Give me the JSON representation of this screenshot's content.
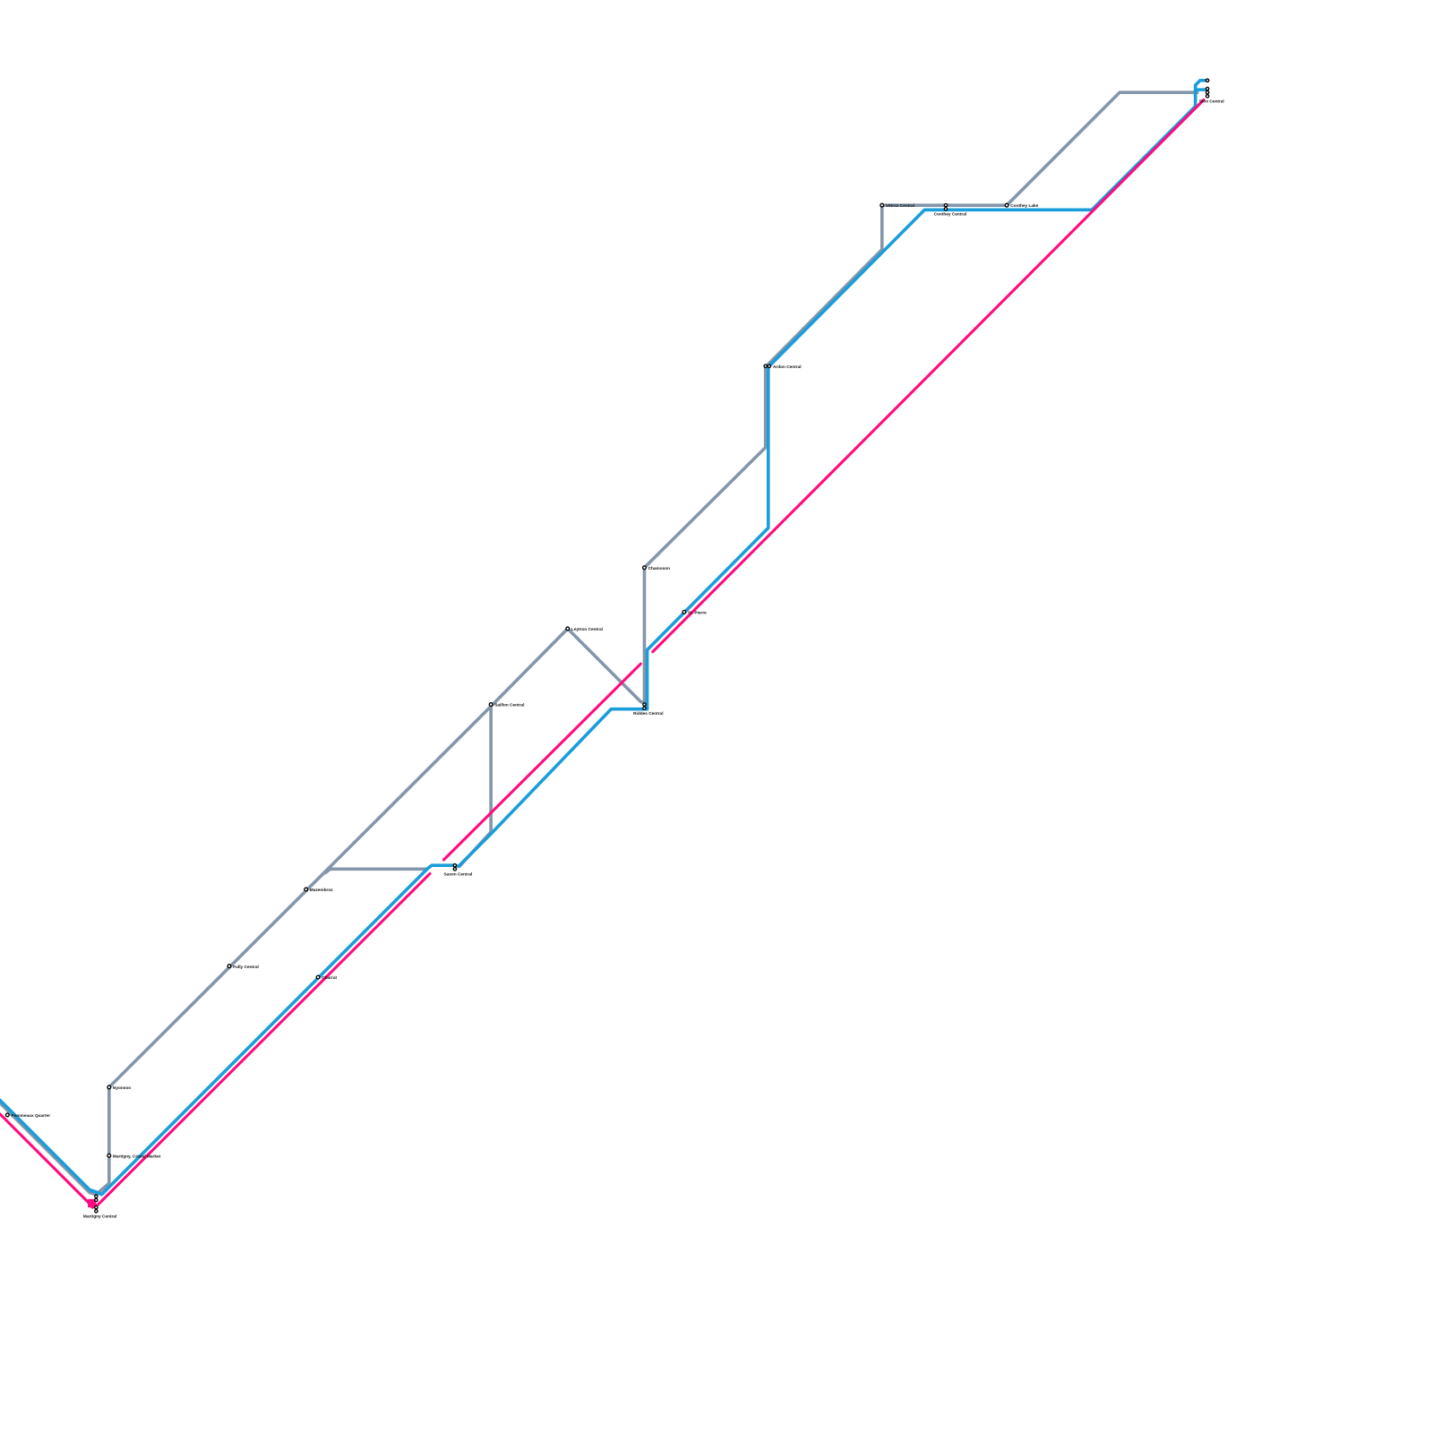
{
  "lines": [
    {
      "id": "gray",
      "color": "#8496a9"
    },
    {
      "id": "blue",
      "color": "#1a9ddb"
    },
    {
      "id": "pink",
      "color": "#ff0a7f"
    }
  ],
  "stations": {
    "pommeaux_quarter": "Pommeaux Quarter",
    "nyonsoo": "Nyonsoo",
    "martigny_market": "Martigny, Cristal Market",
    "martigny_central": "Martigny Central",
    "fully_central": "Fully Central",
    "mazembroz": "Mazembroz",
    "charrat": "Charrat",
    "saxon_central": "Saxon Central",
    "saillon_central": "Saillon Central",
    "leytron_central": "Leytron Central",
    "riddes_central": "Riddes Central",
    "chamoson": "Chamoson",
    "st_pierre": "St. Pierre",
    "ardon_central": "Ardon Central",
    "vetroz_central": "Vétroz Central",
    "conthey_central": "Conthey Central",
    "conthey_lake": "Conthey Lake",
    "sion_central": "Sion Central"
  }
}
